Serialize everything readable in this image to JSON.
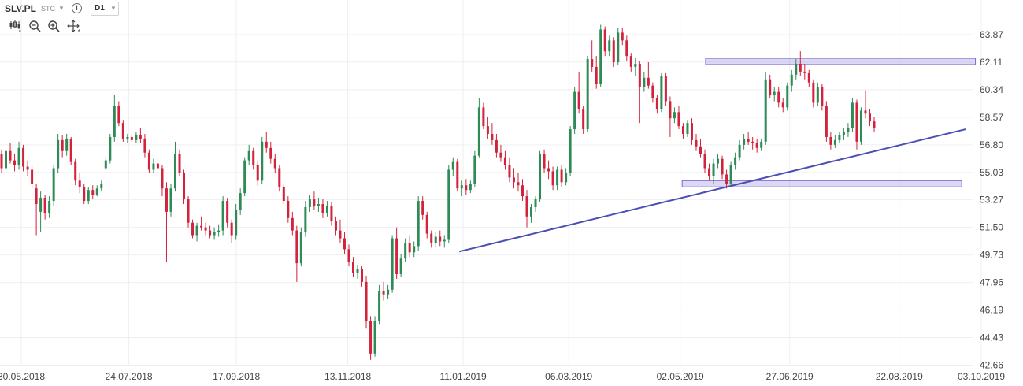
{
  "toolbar": {
    "symbol": "SLV.PL",
    "exchange": "STC",
    "timeframe": "D1",
    "info_icon": "info-icon",
    "tools": [
      "candles-type-icon",
      "zoom-out-icon",
      "zoom-in-icon",
      "move-cross-icon"
    ]
  },
  "chart_data": {
    "type": "candlestick",
    "title": "",
    "y_ticks": [
      "63.87",
      "62.11",
      "60.34",
      "58.57",
      "56.80",
      "55.03",
      "53.27",
      "51.50",
      "49.73",
      "47.96",
      "46.19",
      "44.43",
      "42.66"
    ],
    "ylim": [
      42.66,
      63.87
    ],
    "x_ticks": [
      "30.05.2018",
      "24.07.2018",
      "17.09.2018",
      "13.11.2018",
      "11.01.2019",
      "06.03.2019",
      "02.05.2019",
      "27.06.2019",
      "22.08.2019",
      "03.10.2019"
    ],
    "up_color": "#2e8b57",
    "down_color": "#d2223c",
    "annotations": [
      {
        "type": "zone",
        "from_date": "15.05.2019",
        "to_date": "30.09.2019",
        "y_low": 61.95,
        "y_high": 62.35,
        "color": "#9b8be0"
      },
      {
        "type": "zone",
        "from_date": "03.05.2019",
        "to_date": "23.09.2019",
        "y_low": 54.1,
        "y_high": 54.5,
        "color": "#9b8be0"
      },
      {
        "type": "trendline",
        "from_date": "09.01.2019",
        "from_y": 49.95,
        "to_date": "25.09.2019",
        "to_y": 57.8,
        "color": "#4a4fb2"
      }
    ],
    "candles": [
      [
        56.2,
        56.5,
        55.0,
        55.3
      ],
      [
        55.3,
        56.8,
        55.0,
        56.4
      ],
      [
        56.4,
        56.9,
        55.6,
        55.8
      ],
      [
        55.8,
        56.2,
        55.1,
        55.5
      ],
      [
        55.5,
        57.0,
        55.2,
        56.6
      ],
      [
        56.6,
        56.8,
        55.1,
        55.4
      ],
      [
        55.4,
        55.8,
        54.8,
        55.2
      ],
      [
        55.2,
        55.5,
        54.0,
        54.3
      ],
      [
        54.0,
        54.3,
        51.0,
        53.0
      ],
      [
        52.5,
        53.8,
        51.2,
        53.4
      ],
      [
        53.4,
        53.6,
        52.0,
        52.4
      ],
      [
        52.4,
        53.5,
        52.1,
        53.2
      ],
      [
        53.2,
        55.5,
        52.9,
        55.3
      ],
      [
        55.3,
        57.5,
        55.0,
        57.1
      ],
      [
        57.1,
        57.4,
        56.0,
        56.4
      ],
      [
        56.4,
        57.5,
        56.1,
        57.2
      ],
      [
        57.2,
        57.3,
        55.5,
        55.7
      ],
      [
        55.7,
        55.9,
        54.2,
        54.5
      ],
      [
        54.5,
        55.0,
        53.7,
        54.1
      ],
      [
        54.1,
        54.3,
        53.0,
        53.2
      ],
      [
        53.2,
        54.1,
        53.0,
        53.9
      ],
      [
        53.9,
        54.2,
        53.3,
        53.6
      ],
      [
        53.6,
        54.2,
        53.5,
        54.0
      ],
      [
        54.0,
        54.5,
        53.8,
        54.3
      ],
      [
        55.3,
        56.0,
        55.2,
        55.8
      ],
      [
        55.8,
        57.5,
        55.6,
        57.3
      ],
      [
        57.3,
        60.0,
        57.0,
        59.3
      ],
      [
        59.3,
        59.6,
        58.0,
        58.2
      ],
      [
        58.2,
        58.4,
        57.0,
        57.2
      ],
      [
        57.2,
        57.5,
        56.9,
        57.3
      ],
      [
        57.3,
        57.4,
        57.0,
        57.1
      ],
      [
        57.1,
        57.6,
        56.9,
        57.4
      ],
      [
        57.4,
        57.9,
        56.9,
        57.2
      ],
      [
        57.2,
        57.5,
        56.0,
        56.3
      ],
      [
        56.3,
        56.5,
        55.0,
        55.2
      ],
      [
        55.2,
        55.9,
        55.0,
        55.6
      ],
      [
        55.6,
        56.0,
        55.0,
        55.3
      ],
      [
        55.3,
        55.5,
        53.5,
        54.0
      ],
      [
        54.0,
        54.4,
        49.3,
        52.5
      ],
      [
        52.5,
        54.3,
        52.2,
        54.0
      ],
      [
        54.0,
        57.0,
        53.8,
        56.2
      ],
      [
        56.2,
        56.5,
        54.8,
        55.0
      ],
      [
        55.0,
        55.2,
        53.0,
        53.3
      ],
      [
        53.3,
        53.5,
        51.5,
        51.8
      ],
      [
        51.8,
        52.0,
        50.8,
        51.0
      ],
      [
        51.0,
        51.8,
        50.6,
        51.6
      ],
      [
        51.6,
        52.2,
        51.3,
        51.5
      ],
      [
        51.5,
        51.8,
        51.0,
        51.3
      ],
      [
        51.3,
        51.6,
        50.8,
        51.0
      ],
      [
        51.0,
        51.5,
        50.7,
        51.2
      ],
      [
        51.2,
        51.7,
        50.9,
        51.3
      ],
      [
        51.3,
        53.5,
        51.0,
        53.2
      ],
      [
        53.2,
        53.4,
        51.5,
        51.8
      ],
      [
        51.8,
        52.0,
        50.5,
        51.0
      ],
      [
        51.0,
        53.0,
        50.7,
        52.6
      ],
      [
        52.6,
        54.0,
        52.3,
        53.7
      ],
      [
        53.7,
        56.0,
        53.5,
        55.8
      ],
      [
        55.8,
        56.8,
        55.5,
        56.4
      ],
      [
        56.4,
        56.6,
        55.2,
        55.5
      ],
      [
        55.5,
        55.8,
        54.2,
        54.5
      ],
      [
        54.5,
        57.3,
        54.3,
        57.0
      ],
      [
        57.0,
        57.6,
        56.3,
        56.6
      ],
      [
        56.6,
        57.0,
        55.6,
        55.9
      ],
      [
        55.9,
        56.2,
        55.0,
        55.3
      ],
      [
        55.3,
        55.5,
        53.8,
        54.1
      ],
      [
        54.1,
        54.3,
        53.0,
        53.2
      ],
      [
        53.2,
        53.5,
        51.8,
        52.1
      ],
      [
        52.1,
        52.5,
        51.0,
        51.3
      ],
      [
        51.3,
        51.6,
        48.0,
        49.2
      ],
      [
        49.2,
        51.5,
        49.0,
        51.2
      ],
      [
        51.2,
        53.2,
        50.9,
        52.8
      ],
      [
        52.8,
        53.6,
        52.5,
        53.3
      ],
      [
        53.3,
        53.8,
        52.6,
        52.9
      ],
      [
        52.9,
        53.4,
        52.5,
        53.0
      ],
      [
        53.0,
        53.3,
        52.1,
        52.4
      ],
      [
        52.4,
        53.2,
        52.2,
        52.9
      ],
      [
        52.9,
        53.1,
        51.6,
        51.9
      ],
      [
        51.9,
        52.2,
        51.0,
        51.3
      ],
      [
        51.3,
        52.0,
        50.5,
        50.8
      ],
      [
        50.8,
        51.2,
        49.8,
        50.1
      ],
      [
        50.1,
        50.4,
        49.0,
        49.3
      ],
      [
        49.3,
        49.6,
        48.3,
        48.6
      ],
      [
        48.6,
        49.1,
        48.2,
        48.8
      ],
      [
        48.8,
        49.0,
        47.7,
        48.0
      ],
      [
        48.0,
        48.4,
        45.0,
        45.5
      ],
      [
        45.5,
        45.8,
        43.0,
        43.4
      ],
      [
        43.4,
        45.8,
        43.2,
        45.5
      ],
      [
        45.5,
        47.8,
        45.3,
        47.4
      ],
      [
        47.4,
        48.0,
        46.8,
        47.2
      ],
      [
        47.2,
        47.8,
        46.9,
        47.5
      ],
      [
        47.5,
        51.0,
        47.3,
        50.8
      ],
      [
        50.8,
        51.5,
        48.2,
        48.5
      ],
      [
        48.5,
        49.8,
        48.3,
        49.5
      ],
      [
        49.5,
        50.8,
        49.3,
        50.5
      ],
      [
        50.5,
        51.0,
        49.6,
        49.9
      ],
      [
        49.9,
        50.6,
        49.6,
        50.3
      ],
      [
        50.3,
        53.5,
        50.0,
        53.2
      ],
      [
        53.2,
        53.5,
        52.0,
        52.3
      ],
      [
        52.3,
        52.5,
        50.8,
        51.1
      ],
      [
        51.1,
        51.3,
        50.2,
        50.5
      ],
      [
        50.5,
        51.2,
        50.2,
        50.9
      ],
      [
        50.9,
        51.3,
        50.3,
        50.6
      ],
      [
        50.6,
        51.0,
        50.2,
        50.7
      ],
      [
        50.7,
        55.5,
        50.5,
        55.2
      ],
      [
        55.2,
        56.0,
        54.8,
        55.7
      ],
      [
        55.7,
        55.9,
        53.8,
        54.0
      ],
      [
        54.0,
        54.5,
        53.5,
        54.2
      ],
      [
        54.2,
        54.6,
        53.6,
        53.9
      ],
      [
        53.9,
        54.5,
        53.7,
        54.3
      ],
      [
        54.3,
        56.4,
        54.1,
        56.1
      ],
      [
        56.1,
        59.8,
        56.0,
        59.2
      ],
      [
        59.2,
        59.5,
        57.8,
        58.0
      ],
      [
        58.0,
        58.6,
        57.2,
        57.5
      ],
      [
        57.5,
        58.2,
        56.8,
        57.1
      ],
      [
        57.1,
        57.5,
        56.0,
        56.3
      ],
      [
        56.3,
        56.8,
        55.7,
        56.0
      ],
      [
        56.0,
        56.4,
        55.2,
        55.5
      ],
      [
        55.5,
        56.0,
        54.4,
        54.7
      ],
      [
        54.7,
        55.3,
        54.0,
        54.4
      ],
      [
        54.4,
        55.0,
        53.8,
        54.2
      ],
      [
        54.2,
        54.6,
        53.2,
        53.5
      ],
      [
        53.5,
        53.9,
        51.5,
        52.2
      ],
      [
        52.2,
        53.0,
        51.8,
        52.8
      ],
      [
        52.8,
        53.5,
        52.5,
        53.3
      ],
      [
        53.3,
        56.4,
        53.1,
        56.2
      ],
      [
        56.2,
        56.5,
        55.0,
        55.3
      ],
      [
        55.3,
        55.8,
        54.6,
        55.1
      ],
      [
        55.1,
        55.4,
        53.9,
        54.2
      ],
      [
        54.2,
        55.4,
        53.9,
        55.2
      ],
      [
        55.2,
        55.5,
        54.1,
        54.4
      ],
      [
        54.4,
        55.3,
        54.2,
        55.0
      ],
      [
        55.0,
        58.0,
        54.8,
        57.8
      ],
      [
        57.8,
        60.5,
        57.5,
        60.2
      ],
      [
        60.2,
        61.5,
        58.8,
        59.1
      ],
      [
        59.1,
        59.3,
        57.5,
        57.8
      ],
      [
        57.8,
        62.5,
        57.6,
        62.3
      ],
      [
        62.3,
        63.5,
        61.5,
        61.8
      ],
      [
        61.8,
        62.5,
        60.4,
        60.7
      ],
      [
        60.7,
        64.5,
        60.5,
        64.2
      ],
      [
        64.2,
        64.4,
        62.5,
        62.8
      ],
      [
        62.8,
        63.8,
        62.5,
        63.5
      ],
      [
        63.5,
        63.7,
        61.8,
        62.1
      ],
      [
        62.1,
        64.3,
        61.9,
        64.0
      ],
      [
        64.0,
        64.3,
        63.2,
        63.5
      ],
      [
        63.5,
        63.8,
        62.2,
        62.5
      ],
      [
        62.5,
        62.7,
        61.5,
        61.8
      ],
      [
        61.8,
        62.4,
        61.2,
        62.0
      ],
      [
        62.0,
        62.2,
        58.2,
        60.5
      ],
      [
        60.5,
        61.5,
        60.2,
        61.1
      ],
      [
        61.1,
        62.1,
        60.4,
        60.6
      ],
      [
        60.6,
        60.8,
        59.5,
        59.8
      ],
      [
        59.8,
        60.0,
        58.8,
        59.1
      ],
      [
        59.1,
        61.4,
        58.9,
        61.2
      ],
      [
        61.2,
        61.4,
        59.3,
        59.6
      ],
      [
        59.6,
        59.9,
        57.3,
        58.5
      ],
      [
        58.5,
        59.2,
        58.2,
        58.9
      ],
      [
        58.9,
        59.3,
        57.8,
        58.0
      ],
      [
        58.0,
        58.2,
        57.2,
        57.5
      ],
      [
        57.5,
        58.4,
        57.3,
        58.2
      ],
      [
        58.2,
        58.5,
        56.8,
        57.1
      ],
      [
        57.1,
        57.5,
        56.4,
        56.7
      ],
      [
        56.7,
        57.2,
        56.0,
        56.2
      ],
      [
        56.2,
        56.5,
        55.0,
        55.3
      ],
      [
        55.3,
        55.6,
        54.5,
        54.8
      ],
      [
        54.8,
        55.9,
        54.3,
        55.6
      ],
      [
        55.6,
        56.2,
        55.3,
        55.9
      ],
      [
        55.9,
        56.1,
        54.6,
        54.9
      ],
      [
        54.9,
        55.2,
        54.0,
        54.3
      ],
      [
        54.3,
        55.7,
        54.1,
        55.5
      ],
      [
        55.5,
        56.3,
        55.2,
        56.0
      ],
      [
        56.0,
        57.1,
        55.8,
        56.8
      ],
      [
        56.8,
        57.5,
        56.5,
        57.2
      ],
      [
        57.2,
        57.6,
        56.8,
        57.0
      ],
      [
        57.0,
        57.3,
        56.5,
        56.9
      ],
      [
        56.9,
        57.2,
        56.3,
        56.6
      ],
      [
        56.6,
        57.2,
        56.4,
        57.0
      ],
      [
        57.0,
        61.5,
        56.8,
        61.0
      ],
      [
        61.0,
        61.3,
        59.8,
        60.0
      ],
      [
        60.0,
        60.5,
        59.6,
        60.2
      ],
      [
        60.2,
        60.5,
        59.2,
        59.5
      ],
      [
        59.5,
        59.8,
        58.9,
        59.2
      ],
      [
        59.2,
        60.8,
        59.0,
        60.6
      ],
      [
        60.6,
        61.6,
        60.2,
        61.3
      ],
      [
        61.3,
        62.3,
        61.0,
        62.0
      ],
      [
        62.0,
        62.8,
        61.2,
        61.5
      ],
      [
        61.5,
        62.0,
        61.0,
        61.4
      ],
      [
        61.4,
        61.6,
        60.5,
        60.8
      ],
      [
        60.8,
        61.0,
        59.2,
        59.5
      ],
      [
        59.5,
        60.8,
        59.3,
        60.5
      ],
      [
        60.5,
        60.7,
        59.0,
        59.3
      ],
      [
        59.3,
        59.6,
        57.0,
        57.3
      ],
      [
        57.3,
        57.6,
        56.5,
        56.8
      ],
      [
        56.8,
        57.4,
        56.6,
        57.1
      ],
      [
        57.1,
        57.6,
        56.9,
        57.4
      ],
      [
        57.4,
        57.9,
        57.1,
        57.6
      ],
      [
        57.6,
        58.2,
        57.3,
        57.9
      ],
      [
        57.9,
        59.8,
        57.6,
        59.5
      ],
      [
        59.5,
        59.7,
        56.5,
        57.0
      ],
      [
        57.0,
        59.2,
        56.8,
        59.0
      ],
      [
        59.0,
        60.3,
        58.5,
        58.8
      ],
      [
        58.8,
        59.1,
        58.0,
        58.3
      ],
      [
        58.3,
        58.6,
        57.6,
        57.9
      ]
    ]
  }
}
